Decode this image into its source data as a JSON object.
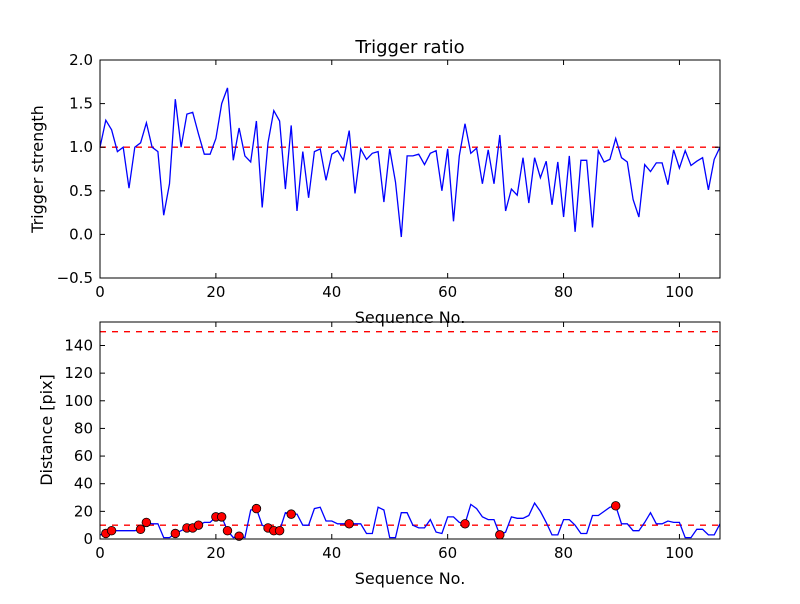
{
  "chart_data": [
    {
      "type": "line",
      "title": "Trigger ratio",
      "xlabel": "Sequence No.",
      "ylabel": "Trigger strength",
      "xlim": [
        0,
        107
      ],
      "ylim": [
        -0.5,
        2.0
      ],
      "xticks": [
        0,
        20,
        40,
        60,
        80,
        100
      ],
      "yticks": [
        -0.5,
        0.0,
        0.5,
        1.0,
        1.5,
        2.0
      ],
      "ytick_labels": [
        "−0.5",
        "0.0",
        "0.5",
        "1.0",
        "1.5",
        "2.0"
      ],
      "grid": false,
      "series": [
        {
          "name": "trigger strength",
          "color": "#0000ff",
          "values": [
            1.0,
            1.31,
            1.2,
            0.95,
            1.0,
            0.53,
            1.0,
            1.05,
            1.28,
            1.0,
            0.95,
            0.22,
            0.58,
            1.55,
            1.0,
            1.38,
            1.4,
            1.15,
            0.92,
            0.92,
            1.1,
            1.5,
            1.68,
            0.85,
            1.22,
            0.9,
            0.83,
            1.3,
            0.31,
            1.05,
            1.42,
            1.3,
            0.52,
            1.25,
            0.27,
            0.95,
            0.42,
            0.95,
            0.98,
            0.62,
            0.92,
            0.96,
            0.85,
            1.19,
            0.47,
            0.98,
            0.86,
            0.93,
            0.95,
            0.37,
            0.98,
            0.6,
            -0.03,
            0.9,
            0.9,
            0.92,
            0.8,
            0.93,
            0.96,
            0.5,
            0.98,
            0.15,
            0.9,
            1.27,
            0.93,
            0.99,
            0.58,
            0.97,
            0.58,
            1.14,
            0.27,
            0.52,
            0.45,
            0.88,
            0.36,
            0.88,
            0.65,
            0.84,
            0.34,
            0.83,
            0.2,
            0.9,
            0.03,
            0.85,
            0.85,
            0.08,
            0.96,
            0.83,
            0.86,
            1.1,
            0.88,
            0.83,
            0.4,
            0.2,
            0.8,
            0.72,
            0.82,
            0.82,
            0.57,
            0.97,
            0.76,
            0.96,
            0.79,
            0.84,
            0.88,
            0.51,
            0.86,
            1.0
          ]
        }
      ],
      "hlines": [
        {
          "y": 1.0,
          "color": "#ff0000",
          "style": "dashed"
        }
      ]
    },
    {
      "type": "line",
      "title": "",
      "xlabel": "Sequence No.",
      "ylabel": "Distance [pix]",
      "xlim": [
        0,
        107
      ],
      "ylim": [
        0,
        157
      ],
      "xticks": [
        0,
        20,
        40,
        60,
        80,
        100
      ],
      "yticks": [
        0,
        20,
        40,
        60,
        80,
        100,
        120,
        140
      ],
      "ytick_labels": [
        "0",
        "20",
        "40",
        "60",
        "80",
        "100",
        "120",
        "140"
      ],
      "grid": false,
      "series": [
        {
          "name": "distance",
          "color": "#0000ff",
          "values": [
            3,
            4,
            6,
            6,
            6,
            6,
            6,
            7,
            12,
            11,
            11,
            1,
            1,
            4,
            6,
            8,
            8,
            10,
            12,
            12,
            16,
            16,
            6,
            1,
            2,
            1,
            21,
            22,
            10,
            8,
            6,
            6,
            19,
            18,
            18,
            10,
            10,
            22,
            23,
            13,
            13,
            11,
            11,
            11,
            11,
            11,
            4,
            4,
            23,
            21,
            1,
            1,
            19,
            19,
            10,
            8,
            8,
            14,
            5,
            4,
            16,
            16,
            12,
            11,
            25,
            22,
            16,
            14,
            14,
            3,
            5,
            16,
            15,
            15,
            17,
            26,
            20,
            12,
            3,
            3,
            14,
            14,
            10,
            4,
            4,
            17,
            17,
            20,
            23,
            24,
            11,
            11,
            6,
            6,
            12,
            19,
            11,
            11,
            13,
            12,
            12,
            1,
            1,
            7,
            7,
            3,
            3,
            11
          ]
        }
      ],
      "markers": {
        "color": "#ff0000",
        "x": [
          1,
          2,
          7,
          8,
          13,
          15,
          16,
          17,
          20,
          21,
          22,
          24,
          27,
          29,
          30,
          31,
          33,
          43,
          63,
          69,
          89
        ]
      },
      "hlines": [
        {
          "y": 10,
          "color": "#ff0000",
          "style": "dashed"
        },
        {
          "y": 150,
          "color": "#ff0000",
          "style": "dashed"
        }
      ]
    }
  ]
}
